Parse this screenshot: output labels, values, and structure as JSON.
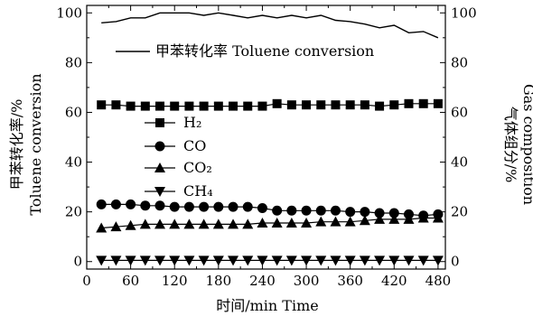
{
  "chart_data": {
    "type": "line",
    "xlabel": "时间/min Time",
    "xticks": [
      0,
      60,
      120,
      180,
      240,
      300,
      360,
      420,
      480
    ],
    "xlim": [
      0,
      490
    ],
    "ylabel_left": [
      "甲苯转化率/%",
      "Toluene conversion"
    ],
    "ylabel_right": [
      "气体组分/%",
      "Gas composition"
    ],
    "yticks": [
      0,
      20,
      40,
      60,
      80,
      100
    ],
    "ylim": [
      -3,
      103
    ],
    "grid": false,
    "series": [
      {
        "name": "甲苯转化率 Toluene conversion",
        "marker": "none",
        "axis": "left",
        "x": [
          20,
          40,
          60,
          80,
          100,
          120,
          140,
          160,
          180,
          200,
          220,
          240,
          260,
          280,
          300,
          320,
          340,
          360,
          380,
          400,
          420,
          440,
          460,
          480
        ],
        "y": [
          96,
          96.5,
          98,
          98,
          100,
          100,
          100,
          99,
          100,
          99,
          98,
          99,
          98,
          99,
          98,
          99,
          97,
          96.5,
          95.5,
          94,
          95,
          92,
          92.5,
          90
        ]
      },
      {
        "name": "H₂",
        "marker": "square",
        "axis": "right",
        "x": [
          20,
          40,
          60,
          80,
          100,
          120,
          140,
          160,
          180,
          200,
          220,
          240,
          260,
          280,
          300,
          320,
          340,
          360,
          380,
          400,
          420,
          440,
          460,
          480
        ],
        "y": [
          63,
          63,
          62.5,
          62.5,
          62.5,
          62.5,
          62.5,
          62.5,
          62.5,
          62.5,
          62.5,
          62.5,
          63.5,
          63,
          63,
          63,
          63,
          63,
          63,
          62.5,
          63,
          63.5,
          63.5,
          63.5
        ]
      },
      {
        "name": "CO",
        "marker": "circle",
        "axis": "right",
        "x": [
          20,
          40,
          60,
          80,
          100,
          120,
          140,
          160,
          180,
          200,
          220,
          240,
          260,
          280,
          300,
          320,
          340,
          360,
          380,
          400,
          420,
          440,
          460,
          480
        ],
        "y": [
          23,
          23,
          23,
          22.5,
          22.5,
          22,
          22,
          22,
          22,
          22,
          22,
          21.5,
          20.5,
          20.5,
          20.5,
          20.5,
          20.5,
          20,
          20,
          19.5,
          19.5,
          19,
          18.5,
          19
        ]
      },
      {
        "name": "CO₂",
        "marker": "triangle-up",
        "axis": "right",
        "x": [
          20,
          40,
          60,
          80,
          100,
          120,
          140,
          160,
          180,
          200,
          220,
          240,
          260,
          280,
          300,
          320,
          340,
          360,
          380,
          400,
          420,
          440,
          460,
          480
        ],
        "y": [
          13.5,
          14,
          14.5,
          15,
          15,
          15,
          15,
          15,
          15,
          15,
          15,
          15.5,
          15.5,
          15.5,
          15.5,
          16,
          16,
          16,
          16.5,
          17,
          17,
          17,
          17.5,
          17.5
        ]
      },
      {
        "name": "CH₄",
        "marker": "triangle-down",
        "axis": "right",
        "x": [
          20,
          40,
          60,
          80,
          100,
          120,
          140,
          160,
          180,
          200,
          220,
          240,
          260,
          280,
          300,
          320,
          340,
          360,
          380,
          400,
          420,
          440,
          460,
          480
        ],
        "y": [
          0.5,
          0.5,
          0.5,
          0.5,
          0.5,
          0.5,
          0.5,
          0.5,
          0.5,
          0.5,
          0.5,
          0.5,
          0.5,
          0.5,
          0.5,
          0.5,
          0.5,
          0.5,
          0.5,
          0.5,
          0.5,
          0.5,
          0.5,
          0.5
        ]
      }
    ]
  }
}
